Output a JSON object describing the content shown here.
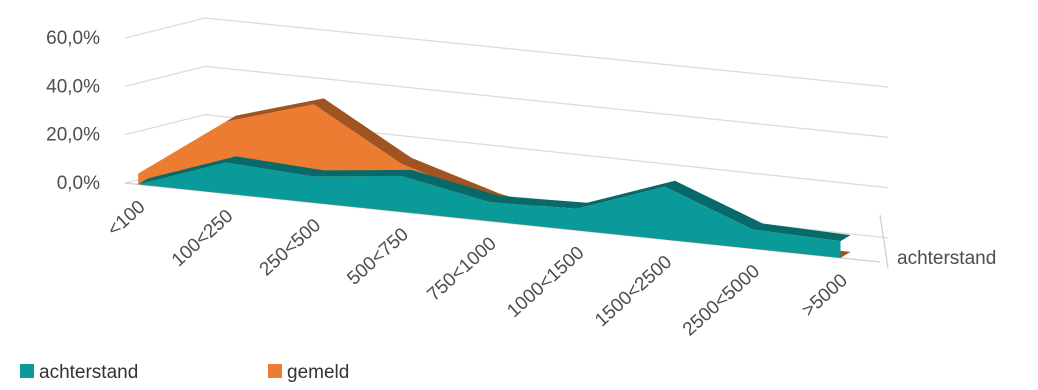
{
  "chart_data": {
    "type": "area",
    "style": "3d-area",
    "title": "",
    "xlabel": "",
    "ylabel": "",
    "categories": [
      "<100",
      "100<250",
      "250<500",
      "500<750",
      "750<1000",
      "1000<1500",
      "1500<2500",
      "2500<5000",
      ">5000"
    ],
    "y_ticks": [
      "0,0%",
      "20,0%",
      "40,0%",
      "60,0%"
    ],
    "ylim": [
      0,
      60
    ],
    "grid": true,
    "depth_axis_label": "achterstand",
    "legend_position": "bottom-left",
    "series": [
      {
        "name": "achterstand",
        "color": "#0a9a99",
        "values": [
          0.0,
          13.0,
          11.0,
          15.0,
          8.0,
          9.0,
          22.0,
          8.0,
          7.0
        ]
      },
      {
        "name": "gemeld",
        "color": "#ec7c31",
        "values": [
          4.5,
          30.0,
          41.0,
          20.0,
          9.0,
          1.5,
          0.0,
          0.0,
          0.0
        ]
      }
    ]
  }
}
